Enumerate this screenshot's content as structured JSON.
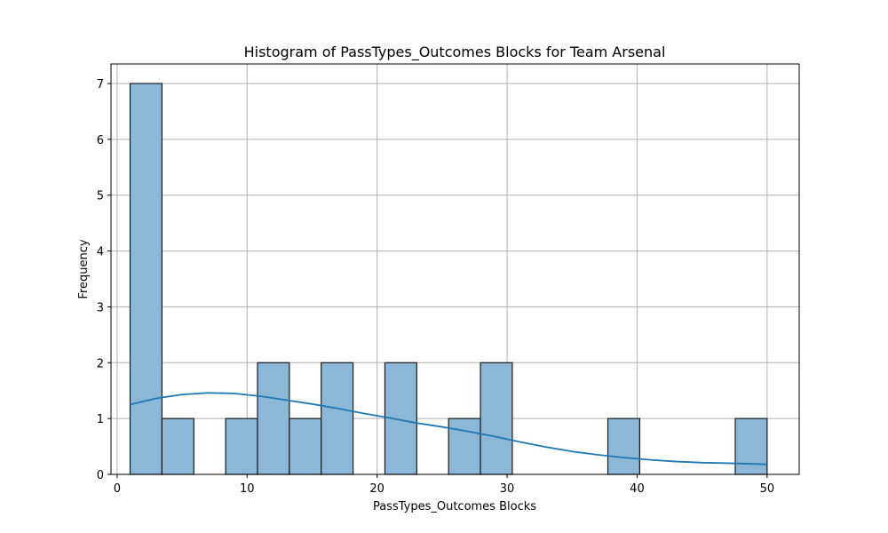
{
  "chart_data": {
    "type": "bar",
    "title": "Histogram of PassTypes_Outcomes Blocks for Team Arsenal",
    "xlabel": "PassTypes_Outcomes Blocks",
    "ylabel": "Frequency",
    "xlim": [
      -0.47,
      52.47
    ],
    "ylim": [
      0,
      7.35
    ],
    "xticks": [
      0,
      10,
      20,
      30,
      40,
      50
    ],
    "yticks": [
      0,
      1,
      2,
      3,
      4,
      5,
      6,
      7
    ],
    "grid": true,
    "bar_color": "#8bb8d8",
    "edge_color": "#1a1a1a",
    "kde_color": "#1f77b4",
    "bins": [
      {
        "start": 1.0,
        "end": 3.45,
        "count": 7
      },
      {
        "start": 3.45,
        "end": 5.9,
        "count": 1
      },
      {
        "start": 5.9,
        "end": 8.35,
        "count": 0
      },
      {
        "start": 8.35,
        "end": 10.8,
        "count": 1
      },
      {
        "start": 10.8,
        "end": 13.25,
        "count": 2
      },
      {
        "start": 13.25,
        "end": 15.7,
        "count": 1
      },
      {
        "start": 15.7,
        "end": 18.15,
        "count": 2
      },
      {
        "start": 18.15,
        "end": 20.6,
        "count": 0
      },
      {
        "start": 20.6,
        "end": 23.05,
        "count": 2
      },
      {
        "start": 23.05,
        "end": 25.5,
        "count": 0
      },
      {
        "start": 25.5,
        "end": 27.95,
        "count": 1
      },
      {
        "start": 27.95,
        "end": 30.4,
        "count": 2
      },
      {
        "start": 30.4,
        "end": 32.85,
        "count": 0
      },
      {
        "start": 32.85,
        "end": 35.3,
        "count": 0
      },
      {
        "start": 35.3,
        "end": 37.75,
        "count": 0
      },
      {
        "start": 37.75,
        "end": 40.2,
        "count": 1
      },
      {
        "start": 40.2,
        "end": 42.65,
        "count": 0
      },
      {
        "start": 42.65,
        "end": 45.1,
        "count": 0
      },
      {
        "start": 45.1,
        "end": 47.55,
        "count": 0
      },
      {
        "start": 47.55,
        "end": 50.0,
        "count": 1
      }
    ],
    "kde": {
      "x": [
        1,
        3,
        5,
        7,
        9,
        11,
        13,
        15,
        17,
        19,
        21,
        23,
        25,
        27,
        29,
        31,
        33,
        35,
        37,
        39,
        41,
        43,
        45,
        47,
        50
      ],
      "y": [
        1.25,
        1.36,
        1.43,
        1.46,
        1.45,
        1.4,
        1.33,
        1.26,
        1.18,
        1.09,
        1.01,
        0.92,
        0.85,
        0.77,
        0.68,
        0.58,
        0.49,
        0.41,
        0.35,
        0.3,
        0.26,
        0.23,
        0.21,
        0.2,
        0.18
      ]
    }
  }
}
